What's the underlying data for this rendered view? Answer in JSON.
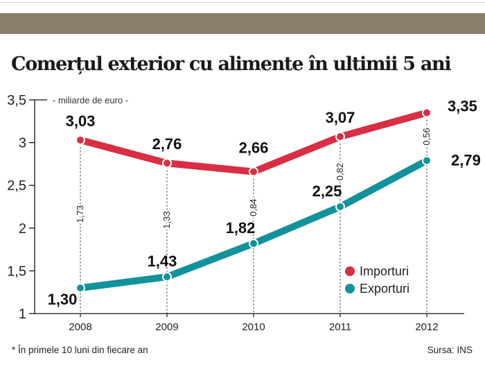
{
  "title": "Comerțul exterior cu alimente în ultimii 5 ani",
  "footnote": "* În primele 10 luni din fiecare an",
  "source": "Sursa: INS",
  "colors": {
    "imports": "#d92e43",
    "exports": "#12929a",
    "band": "#8b7d6b"
  },
  "chart_data": {
    "type": "line",
    "title": "Comerțul exterior cu alimente în ultimii 5 ani",
    "unit_label": "- miliarde de euro -",
    "categories": [
      "2008",
      "2009",
      "2010",
      "2011",
      "2012"
    ],
    "ylim": [
      1,
      3.5
    ],
    "yticks": [
      1,
      1.5,
      2,
      2.5,
      3,
      3.5
    ],
    "ytick_labels": [
      "1",
      "1,5",
      "2",
      "2,5",
      "3",
      "3,5"
    ],
    "series": [
      {
        "name": "Importuri",
        "key": "imports",
        "values": [
          3.03,
          2.76,
          2.66,
          3.07,
          3.35
        ],
        "labels": [
          "3,03",
          "2,76",
          "2,66",
          "3,07",
          "3,35"
        ]
      },
      {
        "name": "Exporturi",
        "key": "exports",
        "values": [
          1.3,
          1.43,
          1.82,
          2.25,
          2.79
        ],
        "labels": [
          "1,30",
          "1,43",
          "1,82",
          "2,25",
          "2,79"
        ]
      }
    ],
    "differences": [
      "1,73",
      "1,33",
      "0,84",
      "0,82",
      "0,56"
    ],
    "legend": [
      {
        "name": "Importuri",
        "key": "imports"
      },
      {
        "name": "Exporturi",
        "key": "exports"
      }
    ]
  }
}
